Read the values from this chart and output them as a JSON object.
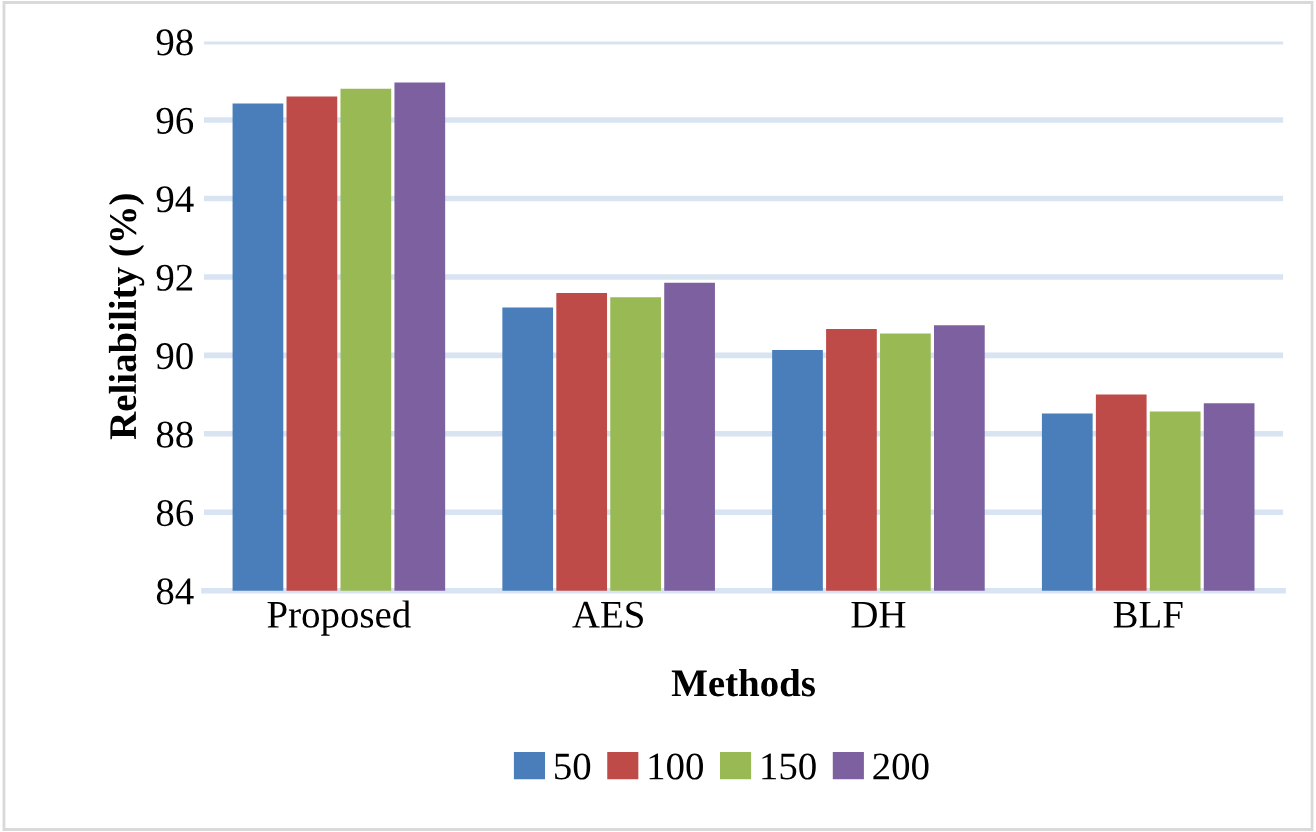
{
  "chart_data": {
    "type": "bar",
    "xlabel": "Methods",
    "ylabel": "Reliability (%)",
    "categories": [
      "Proposed",
      "AES",
      "DH",
      "BLF"
    ],
    "series": [
      {
        "name": "50",
        "color": "#4a7ebb",
        "values": [
          96.42,
          91.22,
          90.14,
          88.52
        ]
      },
      {
        "name": "100",
        "color": "#be4b48",
        "values": [
          96.6,
          91.59,
          90.67,
          89.0
        ]
      },
      {
        "name": "150",
        "color": "#98b954",
        "values": [
          96.8,
          91.48,
          90.56,
          88.57
        ]
      },
      {
        "name": "200",
        "color": "#7d60a0",
        "values": [
          96.96,
          91.85,
          90.77,
          88.78
        ]
      }
    ],
    "ylim": [
      84,
      98
    ],
    "yticks": [
      84,
      86,
      88,
      90,
      92,
      94,
      96,
      98
    ],
    "grid": "y",
    "legend": "bottom"
  }
}
